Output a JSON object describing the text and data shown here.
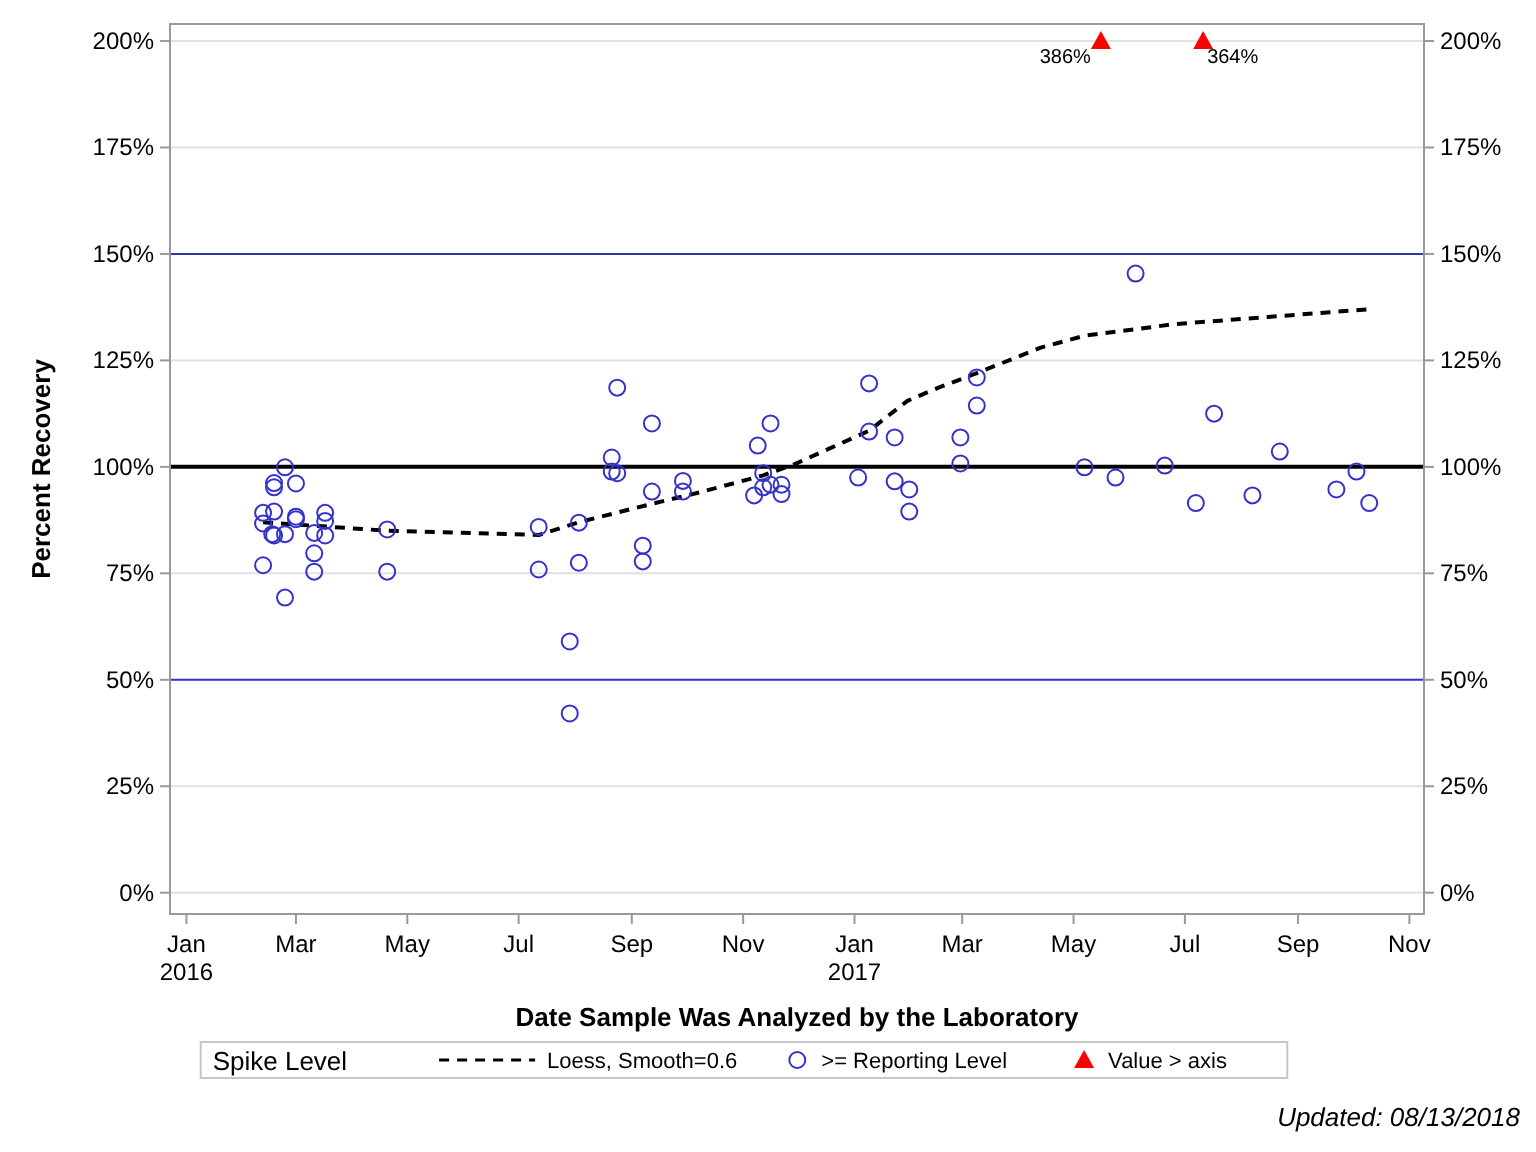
{
  "chart_data": {
    "type": "scatter",
    "xlabel": "Date Sample Was Analyzed by the Laboratory",
    "ylabel": "Percent Recovery",
    "legend_title": "Spike Level",
    "legend": "bottom",
    "grid": "y",
    "xlim": [
      "2015-12-23",
      "2017-11-09"
    ],
    "xticks": [
      {
        "value": "2016-01-01",
        "label": "Jan\n2016"
      },
      {
        "value": "2016-03-01",
        "label": "Mar"
      },
      {
        "value": "2016-05-01",
        "label": "May"
      },
      {
        "value": "2016-07-01",
        "label": "Jul"
      },
      {
        "value": "2016-09-01",
        "label": "Sep"
      },
      {
        "value": "2016-11-01",
        "label": "Nov"
      },
      {
        "value": "2017-01-01",
        "label": "Jan\n2017"
      },
      {
        "value": "2017-03-01",
        "label": "Mar"
      },
      {
        "value": "2017-05-01",
        "label": "May"
      },
      {
        "value": "2017-07-01",
        "label": "Jul"
      },
      {
        "value": "2017-09-01",
        "label": "Sep"
      },
      {
        "value": "2017-11-01",
        "label": "Nov"
      }
    ],
    "ylim": [
      -5,
      204
    ],
    "yticks": [
      {
        "value": 0,
        "label": "0%"
      },
      {
        "value": 25,
        "label": "25%"
      },
      {
        "value": 50,
        "label": "50%"
      },
      {
        "value": 75,
        "label": "75%"
      },
      {
        "value": 100,
        "label": "100%"
      },
      {
        "value": 125,
        "label": "125%"
      },
      {
        "value": 150,
        "label": "150%"
      },
      {
        "value": 175,
        "label": "175%"
      },
      {
        "value": 200,
        "label": "200%"
      }
    ],
    "y2lim": [
      -5,
      204
    ],
    "y2ticks": [
      {
        "value": 0,
        "label": "0%"
      },
      {
        "value": 25,
        "label": "25%"
      },
      {
        "value": 50,
        "label": "50%"
      },
      {
        "value": 75,
        "label": "75%"
      },
      {
        "value": 100,
        "label": "100%"
      },
      {
        "value": 125,
        "label": "125%"
      },
      {
        "value": 150,
        "label": "150%"
      },
      {
        "value": 175,
        "label": "175%"
      },
      {
        "value": 200,
        "label": "200%"
      }
    ],
    "ref_lines": [
      {
        "axis": "y",
        "value": 150,
        "color": "#3535a5"
      },
      {
        "axis": "y",
        "value": 100,
        "color": "#000000"
      },
      {
        "axis": "y",
        "value": 50,
        "color": "#3535cc"
      }
    ],
    "series": [
      {
        "name": "Loess, Smooth=0.6",
        "type": "line",
        "line_style": "dashed",
        "marker": "none",
        "color": "#000000",
        "x": [
          "2016-02-12",
          "2016-04-20",
          "2016-07-12",
          "2016-08-03",
          "2016-09-09",
          "2016-10-08",
          "2016-11-12",
          "2016-11-29",
          "2017-01-09",
          "2017-01-30",
          "2017-02-16",
          "2017-03-09",
          "2017-04-13",
          "2017-05-07",
          "2017-06-25",
          "2017-10-09"
        ],
        "values": [
          87,
          85,
          84,
          87,
          91,
          94,
          98,
          100.6,
          108.5,
          115.5,
          118.6,
          122,
          128,
          130.8,
          133.5,
          137
        ]
      },
      {
        "name": ">= Reporting Level",
        "type": "scatter",
        "marker": "circle",
        "color": "#3333cc",
        "x": [
          "2016-02-12",
          "2016-02-12",
          "2016-02-18",
          "2016-02-18",
          "2016-02-18",
          "2016-02-17",
          "2016-02-18",
          "2016-02-24",
          "2016-03-01",
          "2016-02-24",
          "2016-03-01",
          "2016-03-01",
          "2016-02-12",
          "2016-02-24",
          "2016-03-11",
          "2016-03-11",
          "2016-03-11",
          "2016-03-17",
          "2016-03-17",
          "2016-03-17",
          "2016-04-20",
          "2016-04-20",
          "2016-07-12",
          "2016-07-12",
          "2016-08-03",
          "2016-08-03",
          "2016-07-29",
          "2016-07-29",
          "2016-08-24",
          "2016-08-21",
          "2016-08-21",
          "2016-08-24",
          "2016-09-12",
          "2016-09-12",
          "2016-09-07",
          "2016-09-07",
          "2016-09-29",
          "2016-09-29",
          "2016-11-09",
          "2016-11-16",
          "2016-11-12",
          "2016-11-07",
          "2016-11-12",
          "2016-11-16",
          "2016-11-22",
          "2016-11-22",
          "2017-01-03",
          "2017-01-09",
          "2017-01-09",
          "2017-01-23",
          "2017-01-23",
          "2017-01-31",
          "2017-01-31",
          "2017-02-28",
          "2017-02-28",
          "2017-03-09",
          "2017-03-09",
          "2017-05-07",
          "2017-05-24",
          "2017-06-04",
          "2017-06-20",
          "2017-07-07",
          "2017-07-17",
          "2017-08-07",
          "2017-08-22",
          "2017-09-22",
          "2017-10-03",
          "2017-10-10"
        ],
        "values": [
          89.2,
          86.7,
          95.2,
          96.2,
          89.5,
          84.2,
          83.9,
          99.9,
          96.1,
          84.2,
          88.3,
          87.7,
          76.9,
          69.3,
          84.5,
          79.7,
          75.4,
          89.2,
          87.3,
          83.9,
          85.3,
          75.4,
          85.9,
          75.9,
          86.9,
          77.5,
          59,
          42.1,
          118.6,
          102.2,
          98.9,
          98.5,
          110.2,
          94.2,
          81.5,
          77.8,
          96.7,
          94.2,
          105,
          110.2,
          98.5,
          93.3,
          95.2,
          95.8,
          95.8,
          93.6,
          97.5,
          119.6,
          108.3,
          106.9,
          96.6,
          94.7,
          89.5,
          106.9,
          100.8,
          121,
          114.4,
          99.9,
          97.5,
          145.4,
          100.3,
          91.5,
          112.5,
          93.3,
          103.6,
          94.7,
          98.9,
          91.5
        ]
      },
      {
        "name": "Value > axis",
        "type": "scatter",
        "marker": "triangle",
        "color": "#ff0000",
        "x": [
          "2017-05-16",
          "2017-07-11"
        ],
        "values": [
          200,
          200
        ]
      }
    ],
    "annotations": [
      {
        "text": "386%",
        "x": "2017-05-16",
        "y": 200
      },
      {
        "text": "364%",
        "x": "2017-07-11",
        "y": 200
      },
      "Updated: 08/13/2018"
    ]
  }
}
